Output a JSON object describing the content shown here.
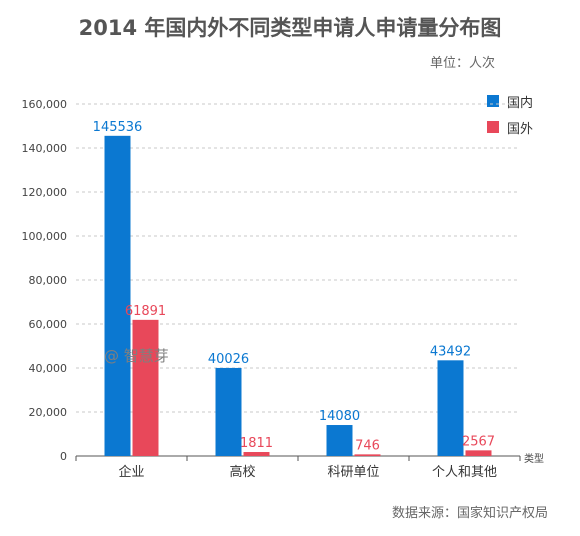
{
  "chart_data": {
    "type": "bar",
    "title": "2014 年国内外不同类型申请人申请量分布图",
    "unit_label": "单位：人次",
    "source": "数据来源：国家知识产权局",
    "watermark": "@ 智慧芽",
    "xlabel": "类型",
    "ylabel": "",
    "categories": [
      "企业",
      "高校",
      "科研单位",
      "个人和其他"
    ],
    "series": [
      {
        "name": "国内",
        "color": "#0b78d1",
        "values": [
          145536,
          40026,
          14080,
          43492
        ]
      },
      {
        "name": "国外",
        "color": "#e8485a",
        "values": [
          61891,
          1811,
          746,
          2567
        ]
      }
    ],
    "ylim": [
      0,
      160000
    ],
    "yticks": [
      "0",
      "20,000",
      "40,000",
      "60,000",
      "80,000",
      "100,000",
      "120,000",
      "140,000",
      "160,000"
    ],
    "grid": true,
    "legend_position": "top-right"
  }
}
